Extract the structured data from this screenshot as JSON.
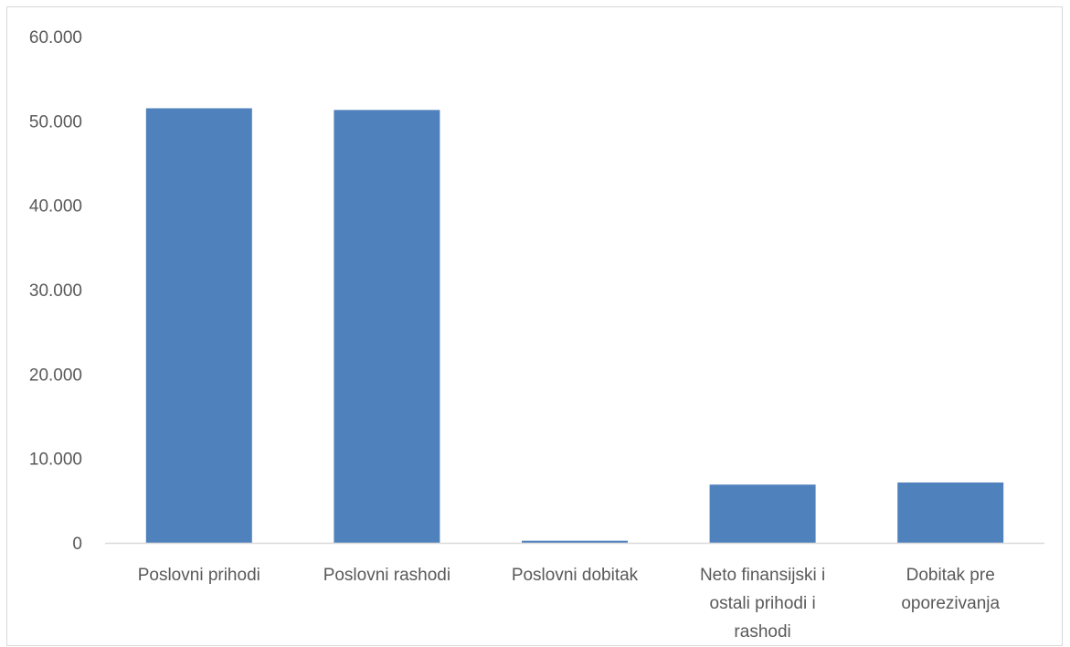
{
  "chart_data": {
    "type": "bar",
    "title": "",
    "xlabel": "",
    "ylabel": "",
    "categories": [
      [
        "Poslovni prihodi"
      ],
      [
        "Poslovni rashodi"
      ],
      [
        "Poslovni dobitak"
      ],
      [
        "Neto finansijski i",
        "ostali prihodi i",
        "rashodi"
      ],
      [
        "Dobitak pre",
        "oporezivanja"
      ]
    ],
    "values": [
      51500,
      51300,
      250,
      6900,
      7150
    ],
    "ylim": [
      0,
      60000
    ],
    "yticks": [
      0,
      10000,
      20000,
      30000,
      40000,
      50000,
      60000
    ],
    "ytick_labels": [
      "0",
      "10.000",
      "20.000",
      "30.000",
      "40.000",
      "50.000",
      "60.000"
    ],
    "grid": false,
    "legend": "none",
    "colors": {
      "bar": "#4F81BD",
      "axis": "#d9d9d9",
      "text": "#595959"
    }
  }
}
